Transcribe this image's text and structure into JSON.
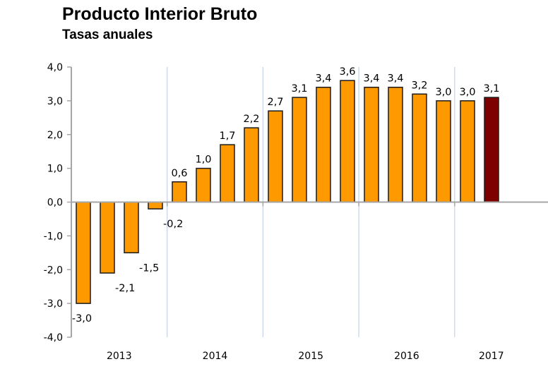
{
  "chart_data": {
    "type": "bar",
    "title": "Producto Interior Bruto",
    "subtitle": "Tasas anuales",
    "xlabel": "",
    "ylabel": "",
    "ylim": [
      -4.0,
      4.0
    ],
    "yticks": [
      "4,0",
      "3,0",
      "2,0",
      "1,0",
      "0,0",
      "-1,0",
      "-2,0",
      "-3,0",
      "-4,0"
    ],
    "ytick_values": [
      4,
      3,
      2,
      1,
      0,
      -1,
      -2,
      -3,
      -4
    ],
    "groups": [
      "2013",
      "2014",
      "2015",
      "2016",
      "2017"
    ],
    "bars_per_group": 4,
    "values": [
      -3.0,
      -2.1,
      -1.5,
      -0.2,
      0.6,
      1.0,
      1.7,
      2.2,
      2.7,
      3.1,
      3.4,
      3.6,
      3.4,
      3.4,
      3.2,
      3.0,
      3.0,
      3.1
    ],
    "labels": [
      "-3,0",
      "-2,1",
      "-1,5",
      "-0,2",
      "0,6",
      "1,0",
      "1,7",
      "2,2",
      "2,7",
      "3,1",
      "3,4",
      "3,6",
      "3,4",
      "3,4",
      "3,2",
      "3,0",
      "3,0",
      "3,1"
    ],
    "bar_color": "#FF9900",
    "highlight_color": "#7F0000",
    "highlight_index": 17,
    "grid": false,
    "legend": "none"
  }
}
